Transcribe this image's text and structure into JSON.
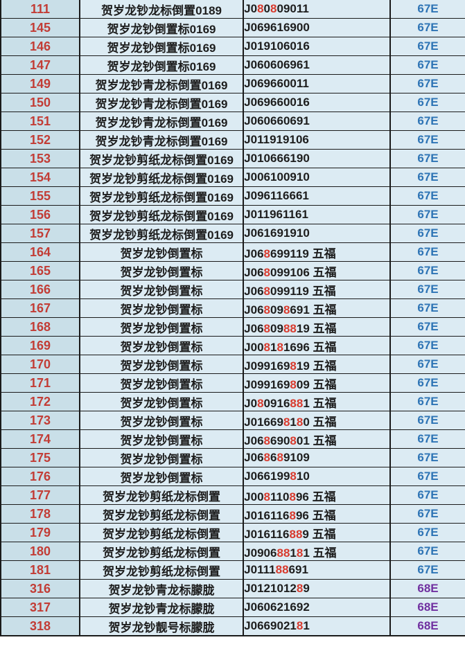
{
  "table": {
    "column_names": [
      "row-number",
      "description",
      "serial-number",
      "grade-code"
    ],
    "colors": {
      "number_column_bg": "#c9dfe8",
      "cell_bg": "#dcebf3",
      "border": "#1a1a1a",
      "row_number_red": "#c23c35",
      "lucky_digit_red": "#d83a2d",
      "text_black": "#1d1d1d",
      "code_colors": {
        "67E": "#2e74b5",
        "68E": "#7030a0"
      }
    },
    "rows": [
      {
        "num": "111",
        "desc": "贺岁龙钞龙标倒置0189",
        "serial": "J080809011",
        "red": [
          2,
          4
        ],
        "suffix": "",
        "code": "67E"
      },
      {
        "num": "145",
        "desc": "贺岁龙钞倒置标0169",
        "serial": "J069616900",
        "red": [],
        "suffix": "",
        "code": "67E"
      },
      {
        "num": "146",
        "desc": "贺岁龙钞倒置标0169",
        "serial": "J019106016",
        "red": [],
        "suffix": "",
        "code": "67E"
      },
      {
        "num": "147",
        "desc": "贺岁龙钞倒置标0169",
        "serial": "J060606961",
        "red": [],
        "suffix": "",
        "code": "67E"
      },
      {
        "num": "149",
        "desc": "贺岁龙钞青龙标倒置0169",
        "serial": "J069660011",
        "red": [],
        "suffix": "",
        "code": "67E"
      },
      {
        "num": "150",
        "desc": "贺岁龙钞青龙标倒置0169",
        "serial": "J069660016",
        "red": [],
        "suffix": "",
        "code": "67E"
      },
      {
        "num": "151",
        "desc": "贺岁龙钞青龙标倒置0169",
        "serial": "J060660691",
        "red": [],
        "suffix": "",
        "code": "67E"
      },
      {
        "num": "152",
        "desc": "贺岁龙钞青龙标倒置0169",
        "serial": "J011919106",
        "red": [],
        "suffix": "",
        "code": "67E"
      },
      {
        "num": "153",
        "desc": "贺岁龙钞剪纸龙标倒置0169",
        "serial": "J010666190",
        "red": [],
        "suffix": "",
        "code": "67E"
      },
      {
        "num": "154",
        "desc": "贺岁龙钞剪纸龙标倒置0169",
        "serial": "J006100910",
        "red": [],
        "suffix": "",
        "code": "67E"
      },
      {
        "num": "155",
        "desc": "贺岁龙钞剪纸龙标倒置0169",
        "serial": "J096116661",
        "red": [],
        "suffix": "",
        "code": "67E"
      },
      {
        "num": "156",
        "desc": "贺岁龙钞剪纸龙标倒置0169",
        "serial": "J011961161",
        "red": [],
        "suffix": "",
        "code": "67E"
      },
      {
        "num": "157",
        "desc": "贺岁龙钞剪纸龙标倒置0169",
        "serial": "J061691910",
        "red": [],
        "suffix": "",
        "code": "67E"
      },
      {
        "num": "164",
        "desc": "贺岁龙钞倒置标",
        "serial": "J068699119",
        "red": [
          3
        ],
        "suffix": "五福",
        "code": "67E"
      },
      {
        "num": "165",
        "desc": "贺岁龙钞倒置标",
        "serial": "J068099106",
        "red": [
          3
        ],
        "suffix": "五福",
        "code": "67E"
      },
      {
        "num": "166",
        "desc": "贺岁龙钞倒置标",
        "serial": "J068099119",
        "red": [
          3
        ],
        "suffix": "五福",
        "code": "67E"
      },
      {
        "num": "167",
        "desc": "贺岁龙钞倒置标",
        "serial": "J068098691",
        "red": [
          3,
          6
        ],
        "suffix": "五福",
        "code": "67E"
      },
      {
        "num": "168",
        "desc": "贺岁龙钞倒置标",
        "serial": "J068098819",
        "red": [
          3,
          6,
          7
        ],
        "suffix": "五福",
        "code": "67E"
      },
      {
        "num": "169",
        "desc": "贺岁龙钞倒置标",
        "serial": "J008181696",
        "red": [
          3,
          5
        ],
        "suffix": "五福",
        "code": "67E"
      },
      {
        "num": "170",
        "desc": "贺岁龙钞倒置标",
        "serial": "J099169819",
        "red": [
          7
        ],
        "suffix": "五福",
        "code": "67E"
      },
      {
        "num": "171",
        "desc": "贺岁龙钞倒置标",
        "serial": "J099169809",
        "red": [
          7
        ],
        "suffix": "五福",
        "code": "67E"
      },
      {
        "num": "172",
        "desc": "贺岁龙钞倒置标",
        "serial": "J080916881",
        "red": [
          2,
          7,
          8
        ],
        "suffix": "五福",
        "code": "67E"
      },
      {
        "num": "173",
        "desc": "贺岁龙钞倒置标",
        "serial": "J016698180",
        "red": [
          6,
          8
        ],
        "suffix": "五福",
        "code": "67E"
      },
      {
        "num": "174",
        "desc": "贺岁龙钞倒置标",
        "serial": "J068690801",
        "red": [
          3,
          7
        ],
        "suffix": "五福",
        "code": "67E"
      },
      {
        "num": "175",
        "desc": "贺岁龙钞倒置标",
        "serial": "J068689109",
        "red": [
          3,
          5
        ],
        "suffix": "",
        "code": "67E"
      },
      {
        "num": "176",
        "desc": "贺岁龙钞倒置标",
        "serial": "J066199810",
        "red": [
          7
        ],
        "suffix": "",
        "code": "67E"
      },
      {
        "num": "177",
        "desc": "贺岁龙钞剪纸龙标倒置",
        "serial": "J008110896",
        "red": [
          3,
          7
        ],
        "suffix": "五福",
        "code": "67E"
      },
      {
        "num": "178",
        "desc": "贺岁龙钞剪纸龙标倒置",
        "serial": "J016116896",
        "red": [
          7
        ],
        "suffix": "五福",
        "code": "67E"
      },
      {
        "num": "179",
        "desc": "贺岁龙钞剪纸龙标倒置",
        "serial": "J016116889",
        "red": [
          7,
          8
        ],
        "suffix": "五福",
        "code": "67E"
      },
      {
        "num": "180",
        "desc": "贺岁龙钞剪纸龙标倒置",
        "serial": "J090688181",
        "red": [
          5,
          6,
          8
        ],
        "suffix": "五福",
        "code": "67E"
      },
      {
        "num": "181",
        "desc": "贺岁龙钞剪纸龙标倒置",
        "serial": "J011188691",
        "red": [
          5,
          6
        ],
        "suffix": "",
        "code": "67E"
      },
      {
        "num": "316",
        "desc": "贺岁龙钞青龙标朦胧",
        "serial": "J012101289",
        "red": [
          8
        ],
        "suffix": "",
        "code": "68E"
      },
      {
        "num": "317",
        "desc": "贺岁龙钞青龙标朦胧",
        "serial": "J060621692",
        "red": [],
        "suffix": "",
        "code": "68E"
      },
      {
        "num": "318",
        "desc": "贺岁龙钞靓号标朦胧",
        "serial": "J066902181",
        "red": [
          8
        ],
        "suffix": "",
        "code": "68E"
      }
    ]
  }
}
